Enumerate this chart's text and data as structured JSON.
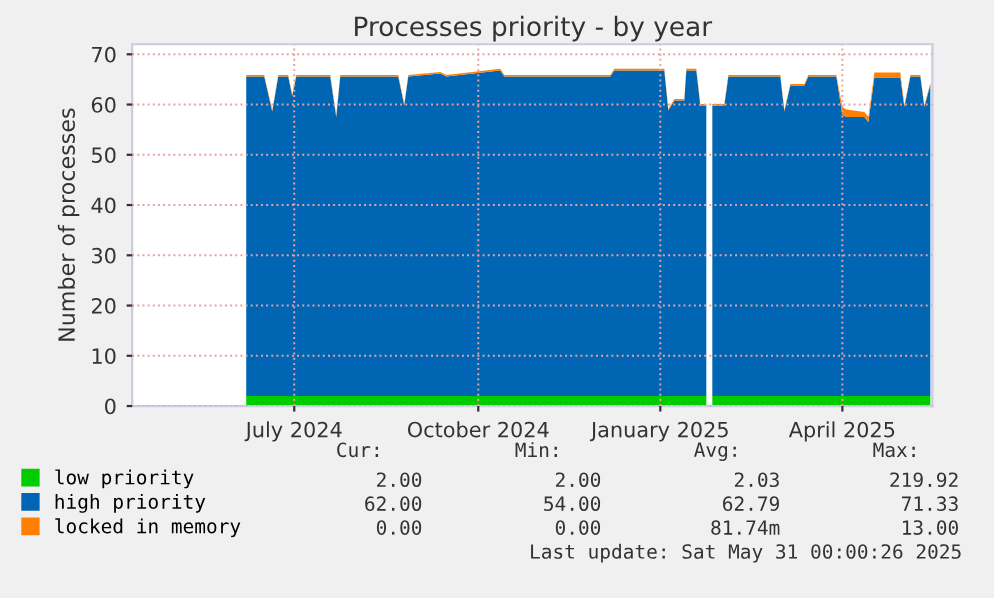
{
  "chart_data": {
    "type": "area",
    "stacked": true,
    "title": "Processes priority - by year",
    "ylabel": "Number of processes",
    "x": [
      "2024-06-22",
      "2024-07-01",
      "2024-07-05",
      "2024-07-08",
      "2024-07-13",
      "2024-07-15",
      "2024-07-17",
      "2024-08-03",
      "2024-08-06",
      "2024-08-08",
      "2024-09-06",
      "2024-09-09",
      "2024-09-11",
      "2024-09-27",
      "2024-09-30",
      "2024-10-27",
      "2024-10-29",
      "2024-12-21",
      "2024-12-23",
      "2025-01-17",
      "2025-01-19",
      "2025-01-22",
      "2025-01-27",
      "2025-01-28",
      "2025-02-02",
      "2025-02-04",
      "2025-02-07",
      "2025-02-08",
      "2025-02-10",
      "2025-02-16",
      "2025-02-18",
      "2025-03-16",
      "2025-03-18",
      "2025-03-21",
      "2025-03-28",
      "2025-03-30",
      "2025-04-13",
      "2025-04-16",
      "2025-04-18",
      "2025-04-27",
      "2025-04-29",
      "2025-05-02",
      "2025-05-15",
      "2025-05-17",
      "2025-05-20",
      "2025-05-25",
      "2025-05-27",
      "2025-05-30"
    ],
    "series": [
      {
        "name": "low priority",
        "color": "#00cc00",
        "values": [
          2,
          2,
          2,
          2,
          2,
          2,
          2,
          2,
          2,
          2,
          2,
          2,
          2,
          2,
          2,
          2,
          2,
          2,
          2,
          2,
          2,
          2,
          2,
          2,
          2,
          2,
          2,
          null,
          2,
          2,
          2,
          2,
          2,
          2,
          2,
          2,
          2,
          2,
          2,
          2,
          2,
          2,
          2,
          2,
          2,
          2,
          2,
          2
        ]
      },
      {
        "name": "high priority",
        "color": "#0066b3",
        "values": [
          63.6,
          63.6,
          56.6,
          63.6,
          63.6,
          59.7,
          63.6,
          63.6,
          55.5,
          63.6,
          63.6,
          57.8,
          63.6,
          64.2,
          63.6,
          64.8,
          63.6,
          63.6,
          64.8,
          64.8,
          56.8,
          58.8,
          58.8,
          64.8,
          64.8,
          57.8,
          57.8,
          null,
          57.8,
          57.8,
          63.6,
          63.6,
          56.6,
          61.8,
          61.8,
          63.6,
          63.6,
          56,
          55.5,
          55.5,
          54.5,
          63.4,
          63.4,
          57.5,
          63.6,
          63.6,
          57.5,
          62
        ]
      },
      {
        "name": "locked in memory",
        "color": "#ff8000",
        "values": [
          0.3,
          0.3,
          0.3,
          0.3,
          0.3,
          0.3,
          0.3,
          0.3,
          0.3,
          0.3,
          0.3,
          0.3,
          0.3,
          0.3,
          0.3,
          0.3,
          0.3,
          0.3,
          0.3,
          0.3,
          0.3,
          0.3,
          0.3,
          0.3,
          0.3,
          0.3,
          0.3,
          null,
          0.3,
          0.3,
          0.3,
          0.3,
          0.3,
          0.3,
          0.3,
          0.3,
          0.3,
          1.5,
          1.5,
          1,
          1,
          1,
          1,
          0.3,
          0.3,
          0.3,
          0.3,
          0.3
        ]
      }
    ],
    "xlim": [
      "2024-04-26",
      "2025-05-31"
    ],
    "xticks": [
      {
        "value": "2024-07-16",
        "label": "July 2024"
      },
      {
        "value": "2024-10-16",
        "label": "October 2024"
      },
      {
        "value": "2025-01-15",
        "label": "January 2025"
      },
      {
        "value": "2025-04-16",
        "label": "April 2025"
      }
    ],
    "ylim": [
      0,
      72
    ],
    "yticks": [
      0,
      10,
      20,
      30,
      40,
      50,
      60,
      70
    ],
    "grid": true,
    "legend": "bottom",
    "annotations": [
      "Cur:",
      "Min:",
      "Avg:",
      "Max:",
      "2.00",
      "2.00",
      "2.03",
      "219.92",
      "62.00",
      "54.00",
      "62.79",
      "71.33",
      "0.00",
      "0.00",
      "81.74m",
      "13.00",
      "Last update: Sat May 31 00:00:26 2025"
    ]
  }
}
